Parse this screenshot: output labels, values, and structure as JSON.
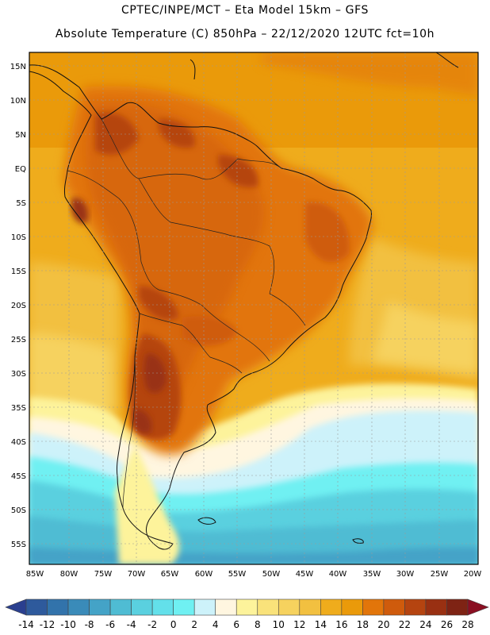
{
  "header": {
    "line1": "CPTEC/INPE/MCT –   Eta Model 15km – GFS",
    "line2": "Absolute Temperature (C) 850hPa – 22/12/2020 12UTC fct=10h"
  },
  "map": {
    "lat_ticks": [
      "15N",
      "10N",
      "5N",
      "EQ",
      "5S",
      "10S",
      "15S",
      "20S",
      "25S",
      "30S",
      "35S",
      "40S",
      "45S",
      "50S",
      "55S"
    ],
    "lon_ticks": [
      "85W",
      "80W",
      "75W",
      "70W",
      "65W",
      "60W",
      "55W",
      "50W",
      "45W",
      "40W",
      "35W",
      "30W",
      "25W",
      "20W"
    ],
    "region": "South America",
    "field": "850hPa absolute temperature"
  },
  "colorbar": {
    "labels": [
      "-14",
      "-12",
      "-10",
      "-8",
      "-6",
      "-4",
      "-2",
      "0",
      "2",
      "4",
      "6",
      "8",
      "10",
      "12",
      "14",
      "16",
      "18",
      "20",
      "22",
      "24",
      "26",
      "28"
    ],
    "colors": [
      "#2a3f8f",
      "#2e5a9c",
      "#3273ab",
      "#3a8bb9",
      "#44a3c7",
      "#4fbcd3",
      "#5ad0df",
      "#63e0ea",
      "#6ff0f2",
      "#cdf2fa",
      "#fff6e0",
      "#fdf39b",
      "#f9e27a",
      "#f6d25e",
      "#f2c040",
      "#efac1c",
      "#ea9a0a",
      "#e2750a",
      "#cf5b0c",
      "#b54410",
      "#993012",
      "#7e2314",
      "#8a0f22"
    ]
  }
}
